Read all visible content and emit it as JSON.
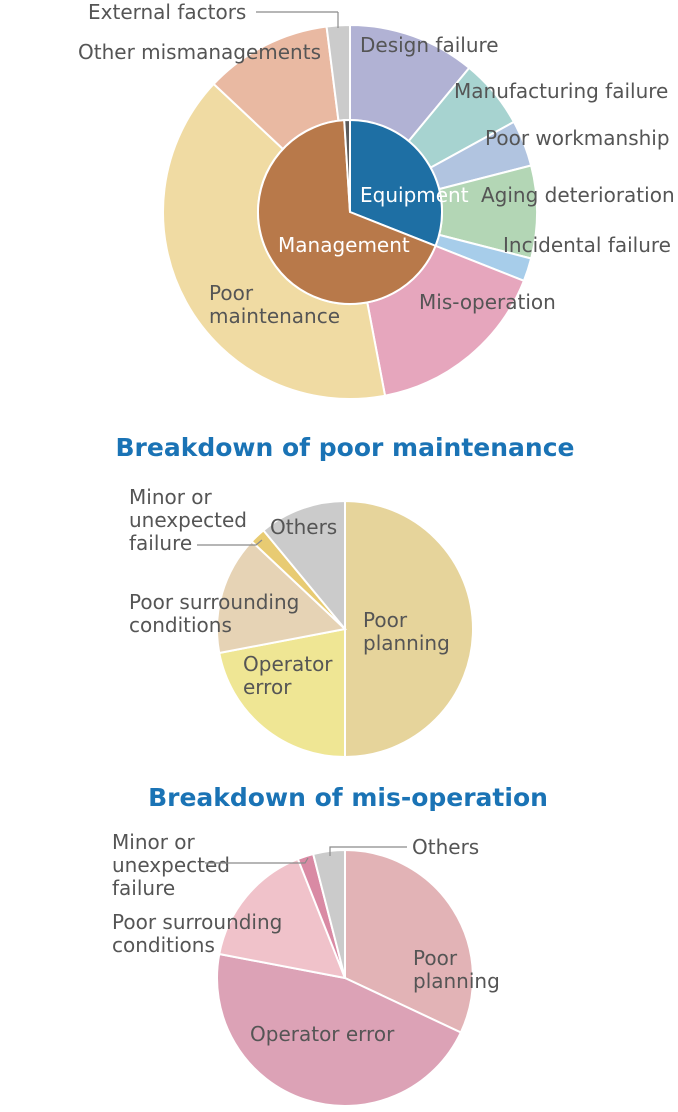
{
  "chart_data": [
    {
      "type": "pie",
      "subtype": "nested-donut",
      "title": "",
      "inner": [
        {
          "label": "Equipment",
          "value": 31,
          "color": "#1e6fa4"
        },
        {
          "label": "Management",
          "value": 68,
          "color": "#b8794a"
        },
        {
          "label": "",
          "value": 1,
          "color": "#5b5b5b"
        }
      ],
      "outer": [
        {
          "label": "Design failure",
          "value": 11,
          "color": "#b1b2d4"
        },
        {
          "label": "Manufacturing failure",
          "value": 6,
          "color": "#a7d3d0"
        },
        {
          "label": "Poor workmanship",
          "value": 4,
          "color": "#b1c4e0"
        },
        {
          "label": "Aging deterioration",
          "value": 8,
          "color": "#b3d6b5"
        },
        {
          "label": "Incidental failure",
          "value": 2,
          "color": "#a7cdea"
        },
        {
          "label": "Mis-operation",
          "value": 16,
          "color": "#e6a6bd"
        },
        {
          "label": "Poor maintenance",
          "value": 40,
          "color": "#f0dba3"
        },
        {
          "label": "Other mismanagements",
          "value": 11,
          "color": "#e9b9a2"
        },
        {
          "label": "External factors",
          "value": 2,
          "color": "#cbcbcb"
        }
      ]
    },
    {
      "type": "pie",
      "title": "Breakdown of poor maintenance",
      "slices": [
        {
          "label": "Poor planning",
          "value": 50,
          "color": "#e6d49b"
        },
        {
          "label": "Operator error",
          "value": 22,
          "color": "#efe694"
        },
        {
          "label": "Poor surrounding conditions",
          "value": 15,
          "color": "#e6d3b5"
        },
        {
          "label": "Minor or unexpected failure",
          "value": 2,
          "color": "#e8cb72"
        },
        {
          "label": "Others",
          "value": 11,
          "color": "#cbcbcb"
        }
      ]
    },
    {
      "type": "pie",
      "title": "Breakdown of mis-operation",
      "slices": [
        {
          "label": "Poor planning",
          "value": 32,
          "color": "#e2b3b6"
        },
        {
          "label": "Operator error",
          "value": 46,
          "color": "#dca2b6"
        },
        {
          "label": "Poor surrounding conditions",
          "value": 16,
          "color": "#f0c2ca"
        },
        {
          "label": "Minor or unexpected failure",
          "value": 2,
          "color": "#d98aa4"
        },
        {
          "label": "Others",
          "value": 4,
          "color": "#cbcbcb"
        }
      ]
    }
  ]
}
